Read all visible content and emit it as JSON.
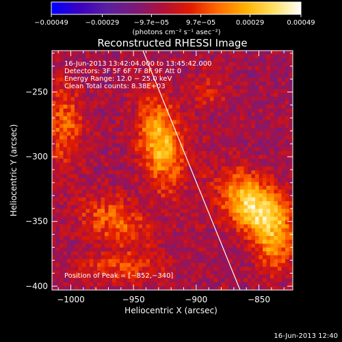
{
  "chart_data": {
    "type": "heatmap",
    "title": "Reconstructed RHESSI Image",
    "xlabel": "Heliocentric X (arcsec)",
    "ylabel": "Heliocentric Y (arcsec)",
    "xlim": [
      -1015,
      -823
    ],
    "ylim": [
      -403,
      -218
    ],
    "xticks": [
      -1000,
      -950,
      -900,
      -850
    ],
    "xtick_labels": [
      "−1000",
      "−950",
      "−900",
      "−850"
    ],
    "yticks": [
      -250,
      -300,
      -350,
      -400
    ],
    "ytick_labels": [
      "−250",
      "−300",
      "−350",
      "−400"
    ],
    "colorbar": {
      "range": [
        -0.00049,
        0.00049
      ],
      "ticks": [
        -0.00049,
        -0.00029,
        -9.7e-05,
        9.7e-05,
        0.00029,
        0.00049
      ],
      "tick_labels": [
        "−0.00049",
        "−0.00029",
        "−9.7e−05",
        "9.7e−05",
        "0.00029",
        "0.00049"
      ],
      "unit_label": "(photons cm⁻² s⁻¹ asec⁻²)",
      "stops": [
        "#0000ff",
        "#3a00c0",
        "#5a1fa0",
        "#7a1a7a",
        "#b0103a",
        "#e01a00",
        "#ff6a00",
        "#ffb000",
        "#ffe060",
        "#ffffff"
      ]
    },
    "info_lines": [
      "16-Jun-2013 13:42:04.000 to 13:45:42.000",
      "Detectors: 3F 5F 6F 7F 8F 9F Att 0",
      "Energy Range: 12.0 − 25.0 keV",
      "Clean     Total counts: 8.38E+03"
    ],
    "peak_label": "Position of Peak = [−852,−340]",
    "peak": [
      -852,
      -340
    ],
    "sources": [
      {
        "x": -852,
        "y": -340,
        "sx": 22,
        "sy": 14,
        "angle": -40,
        "amp": 0.00049
      },
      {
        "x": -928,
        "y": -290,
        "sx": 12,
        "sy": 24,
        "angle": 10,
        "amp": 0.00038
      },
      {
        "x": -965,
        "y": -350,
        "sx": 20,
        "sy": 12,
        "angle": -20,
        "amp": 0.00024
      },
      {
        "x": -1005,
        "y": -275,
        "sx": 10,
        "sy": 22,
        "angle": 0,
        "amp": 0.00022
      },
      {
        "x": -960,
        "y": -385,
        "sx": 25,
        "sy": 8,
        "angle": 0,
        "amp": 0.00017
      },
      {
        "x": -838,
        "y": -372,
        "sx": 10,
        "sy": 14,
        "angle": 0,
        "amp": 0.0002
      },
      {
        "x": -890,
        "y": -250,
        "sx": 10,
        "sy": 10,
        "angle": 0,
        "amp": 0.00012
      }
    ],
    "limb": [
      [
        -950,
        -200
      ],
      [
        -865,
        -403
      ]
    ],
    "grid": false
  },
  "footer_timestamp": "16-Jun-2013 12:40"
}
